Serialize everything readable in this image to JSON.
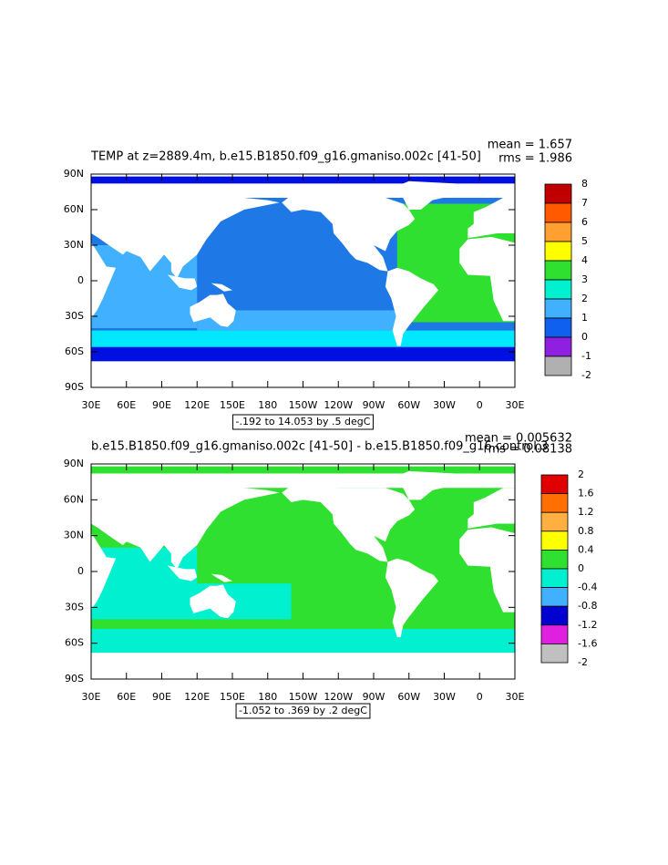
{
  "panels": [
    {
      "title": "TEMP at z=2889.4m, b.e15.B1850.f09_g16.gmaniso.002c [41-50]",
      "mean": "mean = 1.657",
      "rms": "rms = 1.986",
      "contour_info": "-.192 to 14.053 by .5 degC",
      "lat_ticks": [
        {
          "value": 90,
          "label": "90N"
        },
        {
          "value": 60,
          "label": "60N"
        },
        {
          "value": 30,
          "label": "30N"
        },
        0,
        {
          "value": -30,
          "label": "30S"
        },
        {
          "value": -60,
          "label": "60S"
        },
        {
          "value": -90,
          "label": "90S"
        }
      ],
      "lon_ticks": [
        {
          "value": 30,
          "label": "30E"
        },
        {
          "value": 60,
          "label": "60E"
        },
        {
          "value": 90,
          "label": "90E"
        },
        {
          "value": 120,
          "label": "120E"
        },
        {
          "value": 150,
          "label": "150E"
        },
        180,
        {
          "value": 210,
          "label": "150W"
        },
        {
          "value": 240,
          "label": "120W"
        },
        {
          "value": 270,
          "label": "90W"
        },
        {
          "value": 300,
          "label": "60W"
        },
        {
          "value": 330,
          "label": "30W"
        },
        {
          "value": 360,
          "label": "0"
        },
        {
          "value": 390,
          "label": "30E"
        }
      ],
      "colorbar": {
        "levels": [
          8,
          7,
          6,
          5,
          4,
          3,
          2,
          1,
          0,
          -1,
          -2
        ],
        "colors": [
          "#c00000",
          "#ff5a00",
          "#ffa030",
          "#ffff00",
          "#30e030",
          "#00f0d0",
          "#40b0ff",
          "#1060f0",
          "#9020e0",
          "#b0b0b0"
        ]
      }
    },
    {
      "title": "b.e15.B1850.f09_g16.gmaniso.002c [41-50] - b.e15.B1850.f09_g16.control.3",
      "mean": "mean = 0.005632",
      "rms": "rms = 0.08138",
      "contour_info": "-1.052 to .369 by .2 degC",
      "lat_ticks": [
        {
          "value": 90,
          "label": "90N"
        },
        {
          "value": 60,
          "label": "60N"
        },
        {
          "value": 30,
          "label": "30N"
        },
        0,
        {
          "value": -30,
          "label": "30S"
        },
        {
          "value": -60,
          "label": "60S"
        },
        {
          "value": -90,
          "label": "90S"
        }
      ],
      "lon_ticks": [
        {
          "value": 30,
          "label": "30E"
        },
        {
          "value": 60,
          "label": "60E"
        },
        {
          "value": 90,
          "label": "90E"
        },
        {
          "value": 120,
          "label": "120E"
        },
        {
          "value": 150,
          "label": "150E"
        },
        180,
        {
          "value": 210,
          "label": "150W"
        },
        {
          "value": 240,
          "label": "120W"
        },
        {
          "value": 270,
          "label": "90W"
        },
        {
          "value": 300,
          "label": "60W"
        },
        {
          "value": 330,
          "label": "30W"
        },
        {
          "value": 360,
          "label": "0"
        },
        {
          "value": 390,
          "label": "30E"
        }
      ],
      "colorbar": {
        "levels": [
          2,
          1.6,
          1.2,
          0.8,
          0.4,
          0,
          -0.4,
          -0.8,
          -1.2,
          -1.6,
          -2
        ],
        "colors": [
          "#e00000",
          "#ff7000",
          "#ffb040",
          "#ffff00",
          "#30e030",
          "#00f0d0",
          "#40b0ff",
          "#0000d0",
          "#e020e0",
          "#c0c0c0"
        ]
      }
    }
  ]
}
